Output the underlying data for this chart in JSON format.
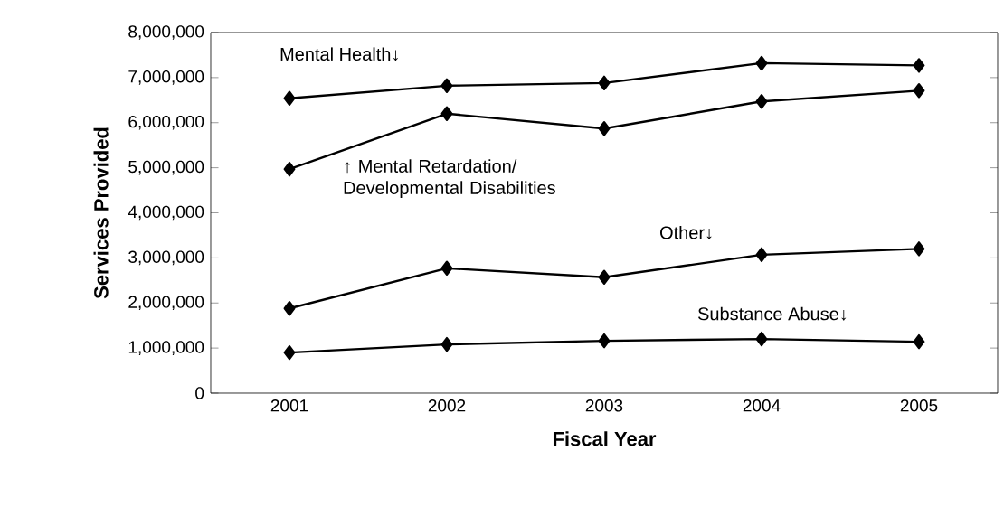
{
  "chart_data": {
    "type": "line",
    "xlabel": "Fiscal Year",
    "ylabel": "Services Provided",
    "categories": [
      "2001",
      "2002",
      "2003",
      "2004",
      "2005"
    ],
    "series": [
      {
        "name": "Mental Health↓",
        "color": "#000000",
        "values": [
          6540000,
          6820000,
          6880000,
          7320000,
          7270000
        ]
      },
      {
        "name": "↑ Mental Retardation/ Developmental Disabilities",
        "color": "#000000",
        "values": [
          4970000,
          6200000,
          5870000,
          6470000,
          6710000
        ]
      },
      {
        "name": "Other↓",
        "color": "#000000",
        "values": [
          1880000,
          2770000,
          2570000,
          3070000,
          3200000
        ]
      },
      {
        "name": "Substance Abuse↓",
        "color": "#000000",
        "values": [
          900000,
          1080000,
          1160000,
          1200000,
          1140000
        ]
      }
    ],
    "ylim": [
      0,
      8000000
    ],
    "yticks": [
      {
        "value": 0,
        "label": "0"
      },
      {
        "value": 1000000,
        "label": "1,000,000"
      },
      {
        "value": 2000000,
        "label": "2,000,000"
      },
      {
        "value": 3000000,
        "label": "3,000,000"
      },
      {
        "value": 4000000,
        "label": "4,000,000"
      },
      {
        "value": 5000000,
        "label": "5,000,000"
      },
      {
        "value": 6000000,
        "label": "6,000,000"
      },
      {
        "value": 7000000,
        "label": "7,000,000"
      },
      {
        "value": 8000000,
        "label": "8,000,000"
      }
    ],
    "marker": "diamond",
    "line_style": "solid"
  }
}
